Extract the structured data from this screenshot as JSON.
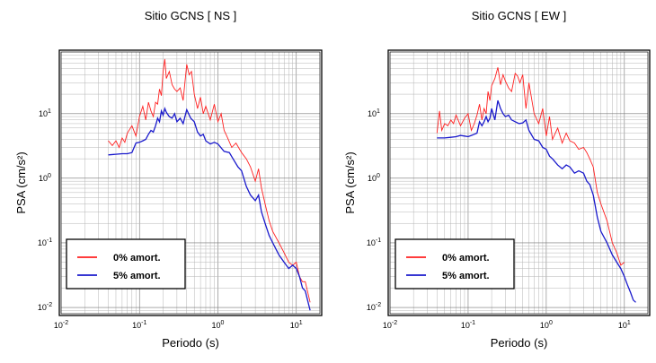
{
  "chart_data": [
    {
      "type": "line",
      "title": "Sitio GCNS [ NS ]",
      "xlabel": "Periodo (s)",
      "ylabel": "PSA (cm/s²)",
      "xscale": "log",
      "yscale": "log",
      "xlim": [
        0.01,
        20
      ],
      "ylim": [
        0.008,
        90
      ],
      "grid": true,
      "legend_position": "bottom-left",
      "series": [
        {
          "name": "0% amort.",
          "color": "#ff2020",
          "x": [
            0.04,
            0.045,
            0.05,
            0.055,
            0.06,
            0.065,
            0.07,
            0.08,
            0.09,
            0.1,
            0.11,
            0.12,
            0.13,
            0.14,
            0.15,
            0.16,
            0.17,
            0.18,
            0.19,
            0.2,
            0.21,
            0.22,
            0.24,
            0.26,
            0.28,
            0.3,
            0.33,
            0.36,
            0.4,
            0.43,
            0.46,
            0.5,
            0.55,
            0.6,
            0.65,
            0.7,
            0.8,
            0.9,
            1.0,
            1.1,
            1.2,
            1.3,
            1.5,
            1.7,
            2.0,
            2.3,
            2.6,
            3.0,
            3.3,
            3.6,
            4.0,
            4.5,
            5.0,
            6.0,
            7.0,
            8.0,
            9.0,
            10.0,
            11.0,
            12.0,
            13.0,
            15.0
          ],
          "y": [
            3.8,
            3.2,
            3.8,
            3.0,
            4.2,
            3.6,
            5.0,
            6.5,
            4.5,
            9.0,
            13.0,
            8.0,
            15.0,
            11.0,
            9.0,
            15.0,
            14.0,
            24.0,
            19.0,
            45.0,
            70.0,
            35.0,
            45.0,
            28.0,
            24.0,
            22.0,
            25.0,
            16.0,
            58.0,
            40.0,
            45.0,
            20.0,
            12.0,
            18.0,
            10.0,
            13.0,
            8.0,
            14.0,
            7.5,
            10.0,
            5.5,
            4.5,
            3.0,
            3.5,
            2.5,
            2.0,
            1.5,
            0.9,
            1.4,
            0.7,
            0.4,
            0.22,
            0.15,
            0.1,
            0.07,
            0.05,
            0.045,
            0.05,
            0.03,
            0.025,
            0.025,
            0.012
          ]
        },
        {
          "name": "5% amort.",
          "color": "#1a1acc",
          "x": [
            0.04,
            0.05,
            0.06,
            0.07,
            0.08,
            0.09,
            0.1,
            0.11,
            0.12,
            0.13,
            0.14,
            0.15,
            0.16,
            0.17,
            0.18,
            0.19,
            0.2,
            0.21,
            0.22,
            0.24,
            0.26,
            0.28,
            0.3,
            0.33,
            0.36,
            0.4,
            0.45,
            0.5,
            0.55,
            0.6,
            0.65,
            0.7,
            0.8,
            0.9,
            1.0,
            1.2,
            1.4,
            1.6,
            1.8,
            2.0,
            2.3,
            2.6,
            3.0,
            3.3,
            3.6,
            4.0,
            4.5,
            5.0,
            5.5,
            6.0,
            7.0,
            8.0,
            9.0,
            10.0,
            11.0,
            12.0,
            13.0,
            15.0
          ],
          "y": [
            2.3,
            2.35,
            2.4,
            2.4,
            2.5,
            3.5,
            3.6,
            3.8,
            4.0,
            4.8,
            5.5,
            5.2,
            6.5,
            8.5,
            7.5,
            11.0,
            9.5,
            12.0,
            10.5,
            9.0,
            8.5,
            10.0,
            7.5,
            8.5,
            7.0,
            11.5,
            8.5,
            7.5,
            5.2,
            4.5,
            4.8,
            3.8,
            3.4,
            3.6,
            3.4,
            2.6,
            2.5,
            1.9,
            1.5,
            1.3,
            0.75,
            0.55,
            0.45,
            0.55,
            0.3,
            0.2,
            0.13,
            0.1,
            0.08,
            0.065,
            0.05,
            0.04,
            0.045,
            0.04,
            0.03,
            0.02,
            0.018,
            0.009
          ]
        }
      ]
    },
    {
      "type": "line",
      "title": "Sitio GCNS [ EW ]",
      "xlabel": "Periodo (s)",
      "ylabel": "PSA (cm/s²)",
      "xscale": "log",
      "yscale": "log",
      "xlim": [
        0.01,
        20
      ],
      "ylim": [
        0.008,
        90
      ],
      "grid": true,
      "legend_position": "bottom-left",
      "series": [
        {
          "name": "0% amort.",
          "color": "#ff2020",
          "x": [
            0.04,
            0.043,
            0.046,
            0.05,
            0.055,
            0.06,
            0.065,
            0.07,
            0.08,
            0.09,
            0.1,
            0.11,
            0.12,
            0.13,
            0.14,
            0.15,
            0.16,
            0.17,
            0.18,
            0.19,
            0.2,
            0.22,
            0.24,
            0.26,
            0.28,
            0.3,
            0.33,
            0.36,
            0.4,
            0.43,
            0.46,
            0.5,
            0.55,
            0.6,
            0.7,
            0.8,
            0.9,
            1.0,
            1.1,
            1.2,
            1.4,
            1.6,
            1.8,
            2.0,
            2.3,
            2.6,
            3.0,
            3.3,
            3.6,
            4.0,
            4.5,
            5.0,
            6.0,
            7.0,
            8.0,
            9.0,
            10.0
          ],
          "y": [
            5.0,
            11.0,
            5.5,
            7.0,
            6.5,
            8.0,
            7.0,
            9.5,
            6.5,
            8.5,
            10.0,
            5.5,
            7.0,
            9.5,
            14.0,
            8.0,
            12.0,
            10.0,
            22.0,
            16.0,
            27.0,
            35.0,
            52.0,
            28.0,
            40.0,
            32.0,
            25.0,
            22.0,
            42.0,
            38.0,
            30.0,
            40.0,
            12.0,
            30.0,
            10.0,
            7.0,
            12.0,
            4.5,
            9.0,
            4.0,
            6.0,
            3.5,
            5.0,
            3.8,
            3.5,
            2.8,
            3.0,
            2.5,
            2.0,
            1.5,
            0.6,
            0.4,
            0.22,
            0.1,
            0.07,
            0.045,
            0.05
          ]
        },
        {
          "name": "5% amort.",
          "color": "#1a1acc",
          "x": [
            0.04,
            0.05,
            0.06,
            0.07,
            0.08,
            0.09,
            0.1,
            0.11,
            0.12,
            0.13,
            0.14,
            0.15,
            0.16,
            0.17,
            0.18,
            0.19,
            0.2,
            0.22,
            0.24,
            0.26,
            0.28,
            0.3,
            0.33,
            0.36,
            0.4,
            0.45,
            0.5,
            0.55,
            0.6,
            0.7,
            0.8,
            0.9,
            1.0,
            1.1,
            1.2,
            1.4,
            1.6,
            1.8,
            2.0,
            2.3,
            2.6,
            3.0,
            3.3,
            3.6,
            4.0,
            4.5,
            5.0,
            6.0,
            7.0,
            8.0,
            9.0,
            10.0,
            11.0,
            12.0,
            13.0,
            14.0
          ],
          "y": [
            4.2,
            4.2,
            4.3,
            4.4,
            4.6,
            4.5,
            4.4,
            4.6,
            4.8,
            5.0,
            7.5,
            6.5,
            7.5,
            9.0,
            7.5,
            8.5,
            12.0,
            8.0,
            16.0,
            12.0,
            10.0,
            9.0,
            9.5,
            8.0,
            7.5,
            7.0,
            7.2,
            8.0,
            5.5,
            4.0,
            3.8,
            3.0,
            2.8,
            2.2,
            2.0,
            1.6,
            1.4,
            1.6,
            1.5,
            1.2,
            1.3,
            1.2,
            0.9,
            0.8,
            0.55,
            0.25,
            0.15,
            0.1,
            0.065,
            0.05,
            0.04,
            0.03,
            0.022,
            0.017,
            0.013,
            0.012
          ]
        }
      ]
    }
  ]
}
